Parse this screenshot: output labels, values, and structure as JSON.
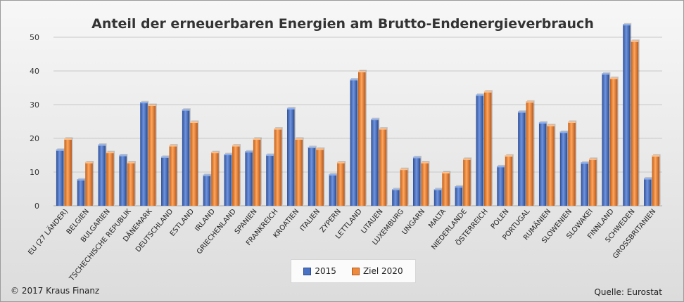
{
  "footer": {
    "copyright": "© 2017  Kraus Finanz",
    "source": "Quelle: Eurostat"
  },
  "colors": {
    "series_2015": "#4a72c4",
    "series_2020": "#ee8a3c",
    "grid": "#bfbfbf"
  },
  "chart_data": {
    "type": "bar",
    "title": "Anteil der erneuerbaren Energien am Brutto-Endenergieverbrauch",
    "xlabel": "",
    "ylabel": "",
    "ylim": [
      0,
      50
    ],
    "yticks": [
      0,
      10,
      20,
      30,
      40,
      50
    ],
    "grid": true,
    "legend_position": "bottom",
    "categories": [
      "EU (27 LÄNDER)",
      "BELGIEN",
      "BULGARIEN",
      "TSCHECHISCHE REPUBLIK",
      "DÄNEMARK",
      "DEUTSCHLAND",
      "ESTLAND",
      "IRLAND",
      "GRIECHENLAND",
      "SPANIEN",
      "FRANKREICH",
      "KROATIEN",
      "ITALIEN",
      "ZYPERN",
      "LETTLAND",
      "LITAUEN",
      "LUXEMBURG",
      "UNGARN",
      "MALTA",
      "NIEDERLANDE",
      "ÖSTERREICH",
      "POLEN",
      "PORTUGAL",
      "RUMÄNIEN",
      "SLOWENIEN",
      "SLOWAKEI",
      "FINNLAND",
      "SCHWEDEN",
      "GROSSBRITANIEN"
    ],
    "series": [
      {
        "name": "2015",
        "values": [
          16.7,
          7.9,
          18.2,
          15.1,
          30.8,
          14.6,
          28.6,
          9.2,
          15.4,
          16.2,
          15.2,
          29.0,
          17.5,
          9.4,
          37.6,
          25.8,
          5.0,
          14.5,
          5.0,
          5.8,
          33.0,
          11.8,
          28.0,
          24.8,
          22.0,
          12.9,
          39.3,
          53.9,
          8.2
        ]
      },
      {
        "name": "Ziel 2020",
        "values": [
          20,
          13,
          16,
          13,
          30,
          18,
          25,
          16,
          18,
          20,
          23,
          20,
          17,
          13,
          40,
          23,
          11,
          13,
          10,
          14,
          34,
          15,
          31,
          24,
          25,
          14,
          38,
          49,
          15
        ]
      }
    ]
  }
}
